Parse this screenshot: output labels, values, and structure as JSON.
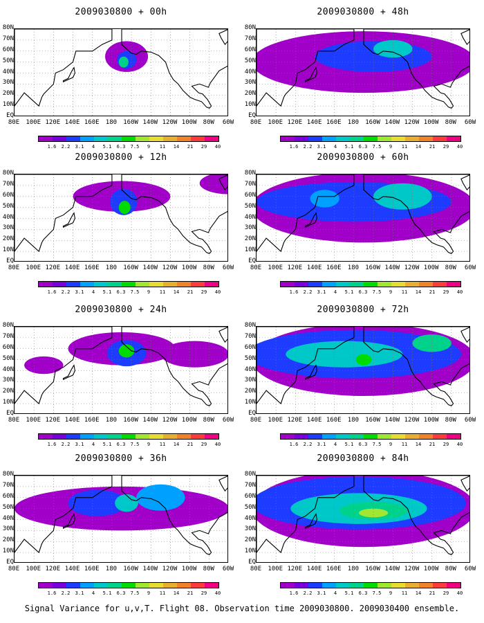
{
  "caption": "Signal Variance for u,v,T. Flight 08. Observation time 2009030800. 2009030400 ensemble.",
  "colorbar": {
    "labels": [
      "1.6",
      "2.2",
      "3.1",
      "4",
      "5.1",
      "6.3",
      "7.5",
      "9",
      "11",
      "14",
      "21",
      "29",
      "40"
    ],
    "colors": [
      "#a000c8",
      "#7800dc",
      "#1e3cff",
      "#00a0ff",
      "#00c8c8",
      "#00d28c",
      "#00dc00",
      "#a0e632",
      "#e6dc32",
      "#e6af2d",
      "#f08228",
      "#fa3c3c",
      "#f00082"
    ]
  },
  "axes": {
    "x_ticks": [
      "80E",
      "100E",
      "120E",
      "140E",
      "160E",
      "180",
      "160W",
      "140W",
      "120W",
      "100W",
      "80W",
      "60W"
    ],
    "y_ticks": [
      "80N",
      "70N",
      "60N",
      "50N",
      "40N",
      "30N",
      "20N",
      "10N",
      "EQ"
    ]
  },
  "chart_data": [
    {
      "type": "heatmap",
      "title": "2009030800 + 00h",
      "lead_hours": 0,
      "max_level": "7.5",
      "position": "left-1"
    },
    {
      "type": "heatmap",
      "title": "2009030800 + 12h",
      "lead_hours": 12,
      "max_level": "9",
      "position": "left-2"
    },
    {
      "type": "heatmap",
      "title": "2009030800 + 24h",
      "lead_hours": 24,
      "max_level": "9",
      "position": "left-3"
    },
    {
      "type": "heatmap",
      "title": "2009030800 + 36h",
      "lead_hours": 36,
      "max_level": "7.5",
      "position": "left-4"
    },
    {
      "type": "heatmap",
      "title": "2009030800 + 48h",
      "lead_hours": 48,
      "max_level": "7.5",
      "position": "right-1"
    },
    {
      "type": "heatmap",
      "title": "2009030800 + 60h",
      "lead_hours": 60,
      "max_level": "7.5",
      "position": "right-2"
    },
    {
      "type": "heatmap",
      "title": "2009030800 + 72h",
      "lead_hours": 72,
      "max_level": "9",
      "position": "right-3"
    },
    {
      "type": "heatmap",
      "title": "2009030800 + 84h",
      "lead_hours": 84,
      "max_level": "9",
      "position": "right-4"
    }
  ]
}
